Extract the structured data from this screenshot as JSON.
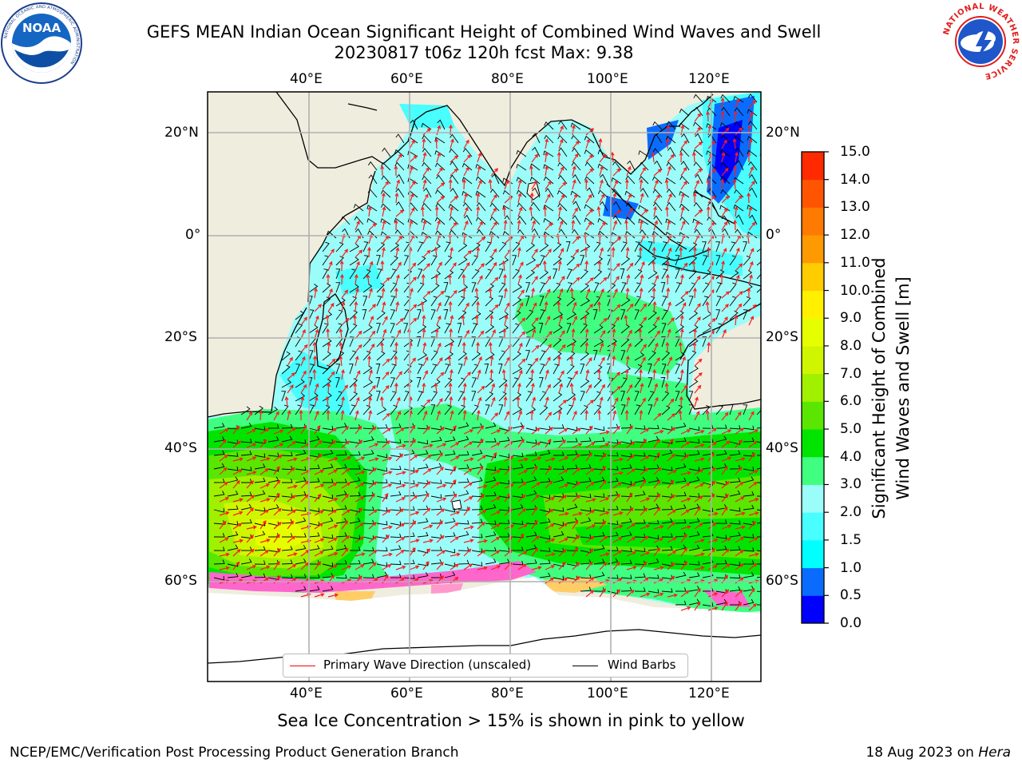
{
  "title": {
    "line1": "GEFS MEAN Indian Ocean Significant Height of Combined Wind Waves and Swell",
    "line2": "20230817 t06z 120h fcst   Max: 9.38"
  },
  "map": {
    "region": "Indian Ocean",
    "lon_ticks": [
      "40°E",
      "60°E",
      "80°E",
      "100°E",
      "120°E"
    ],
    "lat_ticks": [
      "20°N",
      "0°",
      "20°S",
      "40°S",
      "60°S"
    ],
    "lon_range": [
      20,
      130
    ],
    "lat_range": [
      -70,
      28
    ],
    "colors": {
      "land": "#efedde",
      "ocean_low": "#9bfdf9",
      "coast": "#000000",
      "grid": "#b0b0b0"
    }
  },
  "colorbar": {
    "label_line1": "Significant Height of Combined",
    "label_line2": "Wind Waves and Swell [m]",
    "ticks": [
      "15.0",
      "14.0",
      "13.0",
      "12.0",
      "11.0",
      "10.0",
      "9.0",
      "8.0",
      "7.0",
      "6.0",
      "5.0",
      "4.0",
      "3.0",
      "2.0",
      "1.5",
      "1.0",
      "0.5",
      "0.0"
    ],
    "colors": [
      "#0000ff",
      "#0a6cff",
      "#00ffff",
      "#48fefe",
      "#9bfdf9",
      "#40ff80",
      "#00e400",
      "#5ae600",
      "#a0f000",
      "#d0f500",
      "#e6ff00",
      "#fff000",
      "#ffcc00",
      "#ff9900",
      "#ff7a00",
      "#ff5500",
      "#ff2a00",
      "#ff0000"
    ]
  },
  "legend": {
    "wave_label": "Primary Wave Direction (unscaled)",
    "wind_label": "Wind Barbs",
    "wave_color": "#ff0000",
    "wind_color": "#000000"
  },
  "caption": "Sea Ice Concentration > 15% is shown in pink to yellow",
  "footer": {
    "org": "NCEP/EMC/Verification Post Processing Product Generation Branch",
    "date": "18 Aug 2023 on",
    "host": "Hera"
  },
  "logos": {
    "noaa_text": "NOAA",
    "noaa_ring": "NATIONAL OCEANIC AND ATMOSPHERIC ADMINISTRATION",
    "nws_ring": "NATIONAL WEATHER SERVICE",
    "noaa_icon": "noaa-logo-icon",
    "nws_icon": "nws-logo-icon"
  }
}
